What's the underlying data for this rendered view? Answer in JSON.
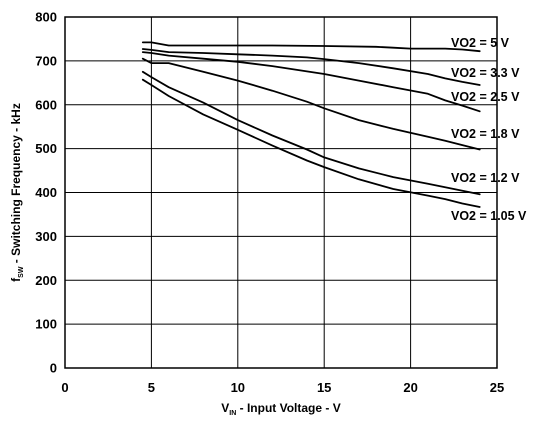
{
  "chart_data": {
    "type": "line",
    "title": "",
    "xlabel": {
      "main": "V",
      "sub": "IN",
      "rest": " - Input Voltage - V"
    },
    "ylabel": {
      "main": "f",
      "sub": "SW",
      "rest": " - Switching Frequency - kHz"
    },
    "xlim": [
      0,
      25
    ],
    "ylim": [
      0,
      800
    ],
    "x_ticks": [
      0,
      5,
      10,
      15,
      20,
      25
    ],
    "y_ticks": [
      0,
      100,
      200,
      300,
      400,
      500,
      600,
      700,
      800
    ],
    "grid": true,
    "series": [
      {
        "name": "VO2 = 5 V",
        "x": [
          4.5,
          5,
          6,
          8,
          10,
          12,
          15,
          18,
          19,
          20,
          21,
          22,
          23,
          24
        ],
        "y": [
          742,
          742,
          735,
          735,
          735,
          735,
          734,
          732,
          730,
          728,
          728,
          728,
          726,
          722
        ]
      },
      {
        "name": "VO2 = 3.3 V",
        "x": [
          4.5,
          5,
          6,
          8,
          10,
          12,
          14,
          15,
          17,
          19,
          21,
          22,
          23,
          24
        ],
        "y": [
          727,
          725,
          720,
          718,
          715,
          712,
          708,
          704,
          695,
          683,
          670,
          660,
          652,
          645
        ]
      },
      {
        "name": "VO2 = 2.5 V",
        "x": [
          4.5,
          5,
          6,
          8,
          10,
          12,
          14,
          15,
          17,
          19,
          21,
          22,
          23,
          24
        ],
        "y": [
          720,
          718,
          712,
          705,
          698,
          688,
          676,
          670,
          655,
          640,
          625,
          610,
          598,
          585
        ]
      },
      {
        "name": "VO2 = 1.8 V",
        "x": [
          4.5,
          5,
          6,
          8,
          10,
          12,
          14,
          15,
          17,
          19,
          21,
          22,
          23,
          24
        ],
        "y": [
          705,
          695,
          695,
          675,
          655,
          632,
          607,
          592,
          565,
          545,
          527,
          518,
          508,
          498
        ]
      },
      {
        "name": "VO2 = 1.2 V",
        "x": [
          4.5,
          5,
          6,
          8,
          10,
          12,
          14,
          15,
          17,
          19,
          21,
          22,
          23,
          24
        ],
        "y": [
          675,
          663,
          640,
          605,
          565,
          530,
          498,
          480,
          455,
          435,
          420,
          412,
          404,
          396
        ]
      },
      {
        "name": "VO2 = 1.05 V",
        "x": [
          4.5,
          5,
          6,
          8,
          10,
          12,
          14,
          15,
          17,
          19,
          21,
          22,
          23,
          24
        ],
        "y": [
          657,
          645,
          620,
          578,
          543,
          507,
          473,
          458,
          430,
          408,
          393,
          385,
          375,
          367
        ]
      }
    ]
  }
}
